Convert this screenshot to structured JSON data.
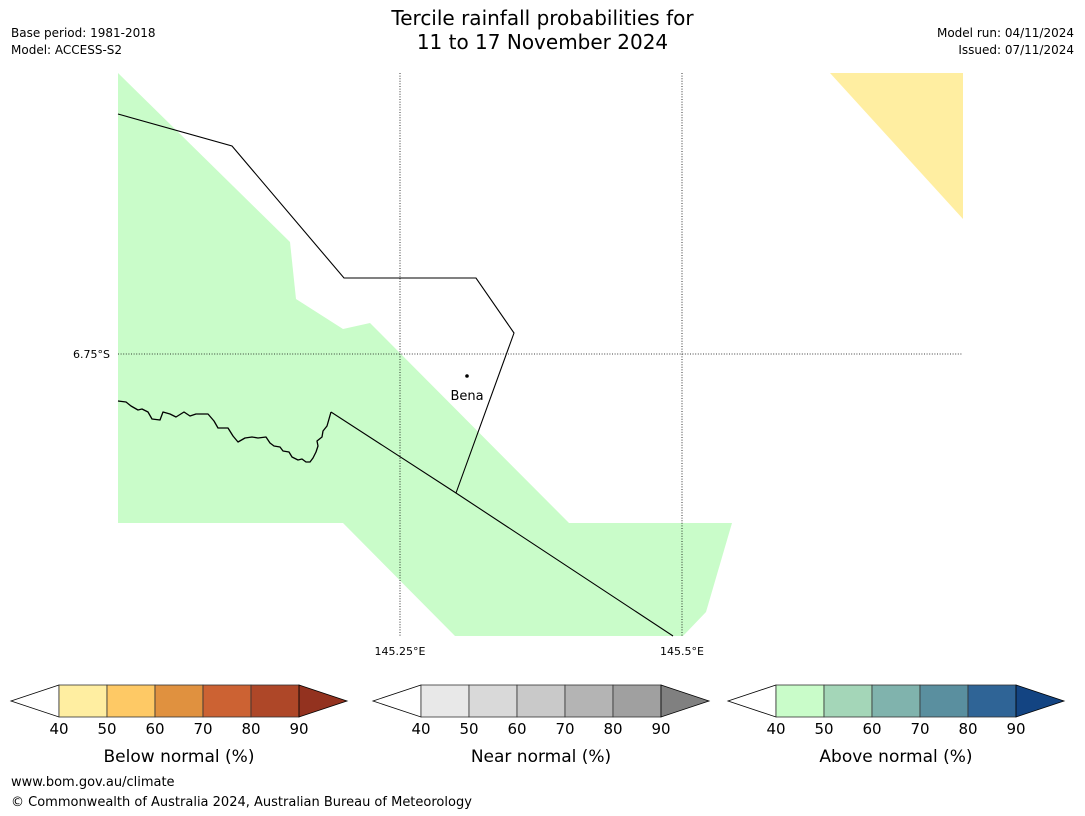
{
  "title": {
    "line1": "Tercile rainfall probabilities for",
    "line2": "11 to 17 November 2024"
  },
  "meta_left": {
    "base_period": "Base period: 1981-2018",
    "model": "Model: ACCESS-S2"
  },
  "meta_right": {
    "model_run": "Model run: 04/11/2024",
    "issued": "Issued: 07/11/2024"
  },
  "map": {
    "latitude_label": "6.75°S",
    "longitude_labels": [
      "145.25°E",
      "145.5°E"
    ],
    "place_label": "Bena",
    "fill_colors": {
      "above_40_50": "#c9fcc9",
      "below_40_50": "#ffeea1"
    }
  },
  "colorbars": [
    {
      "name": "below",
      "label": "Below normal (%)",
      "ticks": [
        "40",
        "50",
        "60",
        "70",
        "80",
        "90"
      ],
      "low_arrow_color": "#ffffff",
      "colors": [
        "#ffeea1",
        "#fec965",
        "#e0913f",
        "#cc6233",
        "#ae4728"
      ],
      "high_arrow_color": "#93321f"
    },
    {
      "name": "near",
      "label": "Near normal (%)",
      "ticks": [
        "40",
        "50",
        "60",
        "70",
        "80",
        "90"
      ],
      "low_arrow_color": "#ffffff",
      "colors": [
        "#e8e8e8",
        "#d9d9d9",
        "#c9c9c9",
        "#b4b4b4",
        "#a0a0a0"
      ],
      "high_arrow_color": "#808080"
    },
    {
      "name": "above",
      "label": "Above normal (%)",
      "ticks": [
        "40",
        "50",
        "60",
        "70",
        "80",
        "90"
      ],
      "low_arrow_color": "#ffffff",
      "colors": [
        "#c9fcc9",
        "#a4d6b8",
        "#80b3ad",
        "#5a8f9f",
        "#2f6496"
      ],
      "high_arrow_color": "#134482"
    }
  ],
  "footer": {
    "url": "www.bom.gov.au/climate",
    "copyright": "© Commonwealth of Australia 2024, Australian Bureau of Meteorology"
  }
}
